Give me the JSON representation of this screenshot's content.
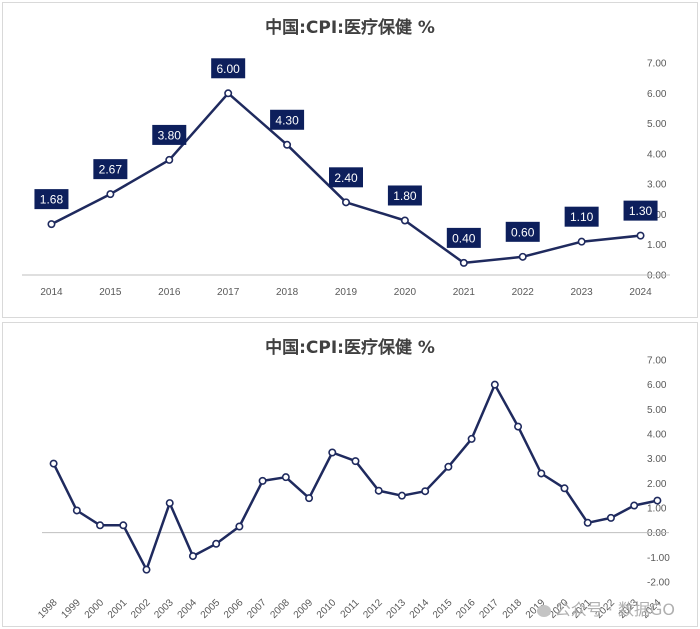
{
  "colors": {
    "line": "#1f2a5e",
    "label_bg": "#0d1f5c",
    "axis": "#bfbfbf"
  },
  "watermark": "公众号 · 数据GO",
  "chart_data": [
    {
      "type": "line",
      "title": "中国:CPI:医疗保健 %",
      "categories": [
        "2014",
        "2015",
        "2016",
        "2017",
        "2018",
        "2019",
        "2020",
        "2021",
        "2022",
        "2023",
        "2024"
      ],
      "values": [
        1.68,
        2.67,
        3.8,
        6.0,
        4.3,
        2.4,
        1.8,
        0.4,
        0.6,
        1.1,
        1.3
      ],
      "data_labels": [
        "1.68",
        "2.67",
        "3.80",
        "6.00",
        "4.30",
        "2.40",
        "1.80",
        "0.40",
        "0.60",
        "1.10",
        "1.30"
      ],
      "ylim": [
        0,
        7
      ],
      "yticks": [
        "0.00",
        "1.00",
        "2.00",
        "3.00",
        "4.00",
        "5.00",
        "6.00",
        "7.00"
      ],
      "y_axis_side": "right",
      "grid": false
    },
    {
      "type": "line",
      "title": "中国:CPI:医疗保健 %",
      "categories": [
        "1998",
        "1999",
        "2000",
        "2001",
        "2002",
        "2003",
        "2004",
        "2005",
        "2006",
        "2007",
        "2008",
        "2009",
        "2010",
        "2011",
        "2012",
        "2013",
        "2014",
        "2015",
        "2016",
        "2017",
        "2018",
        "2019",
        "2020",
        "2021",
        "2022",
        "2023",
        "2024"
      ],
      "values": [
        2.8,
        0.9,
        0.3,
        0.3,
        -1.5,
        1.2,
        -0.95,
        -0.45,
        0.25,
        2.1,
        2.25,
        1.4,
        3.25,
        2.9,
        1.7,
        1.5,
        1.68,
        2.67,
        3.8,
        6.0,
        4.3,
        2.4,
        1.8,
        0.4,
        0.6,
        1.1,
        1.3
      ],
      "ylim": [
        -2,
        7
      ],
      "yticks": [
        "-2.00",
        "-1.00",
        "0.00",
        "1.00",
        "2.00",
        "3.00",
        "4.00",
        "5.00",
        "6.00",
        "7.00"
      ],
      "y_axis_side": "right",
      "grid": false
    }
  ]
}
